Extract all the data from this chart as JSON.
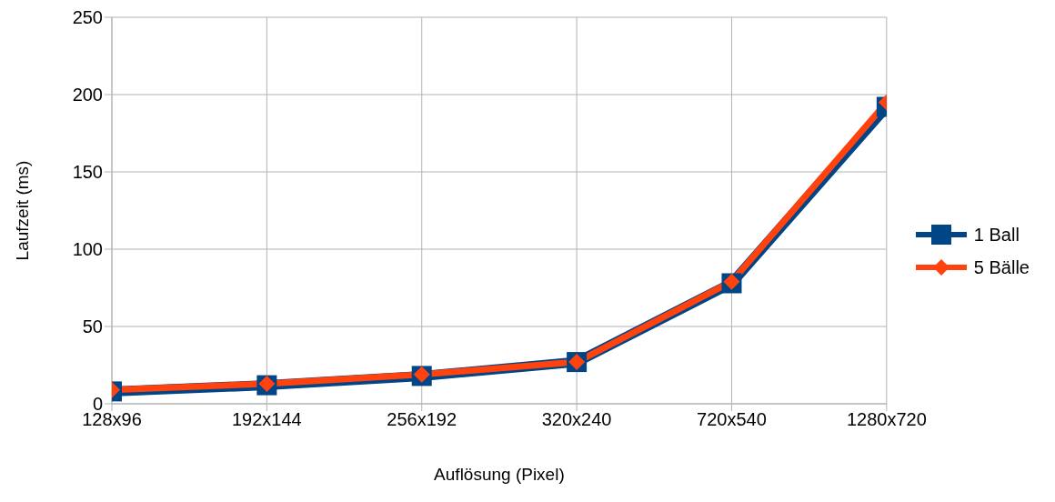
{
  "chart_data": {
    "type": "line",
    "xlabel": "Auflösung (Pixel)",
    "ylabel": "Laufzeit (ms)",
    "categories": [
      "128x96",
      "192x144",
      "256x192",
      "320x240",
      "720x540",
      "1280x720"
    ],
    "series": [
      {
        "name": "1 Ball",
        "color": "#004586",
        "marker": "square",
        "values": [
          8,
          12,
          18,
          27,
          78,
          192
        ]
      },
      {
        "name": "5 Bälle",
        "color": "#ff420e",
        "marker": "diamond",
        "values": [
          9,
          13,
          19,
          27,
          79,
          195
        ]
      }
    ],
    "ylim": [
      0,
      250
    ],
    "yticks": [
      0,
      50,
      100,
      150,
      200,
      250
    ],
    "grid": true,
    "legend": "right",
    "line_style": "solid"
  }
}
